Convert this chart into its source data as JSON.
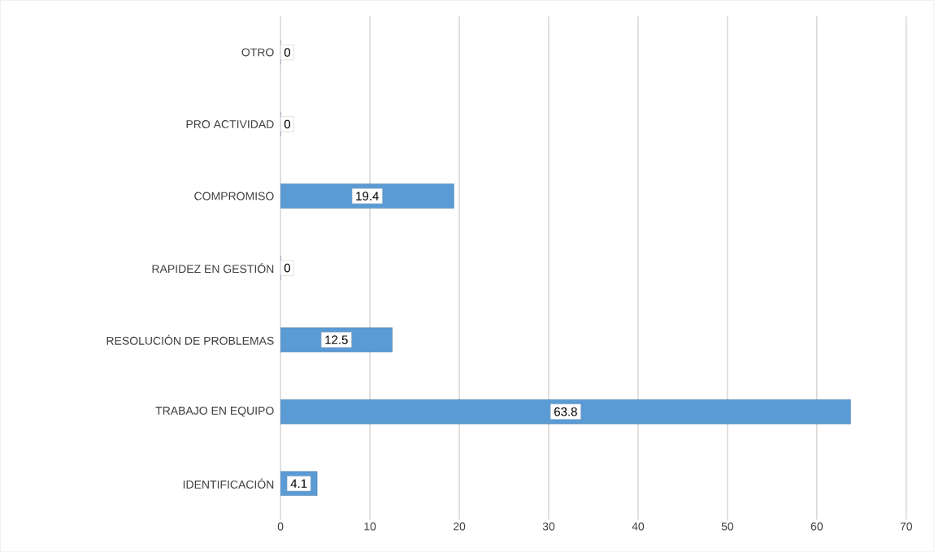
{
  "chart_data": {
    "type": "bar",
    "orientation": "horizontal",
    "categories": [
      "OTRO",
      "PRO ACTIVIDAD",
      "COMPROMISO",
      "RAPIDEZ EN GESTIÓN",
      "RESOLUCIÓN DE PROBLEMAS",
      "TRABAJO EN EQUIPO",
      "IDENTIFICACIÓN"
    ],
    "values": [
      0,
      0,
      19.4,
      0,
      12.5,
      63.8,
      4.1
    ],
    "color": "#5b9bd5",
    "xlim": [
      0,
      70
    ],
    "xticks": [
      0,
      10,
      20,
      30,
      40,
      50,
      60,
      70
    ],
    "grid": "x",
    "data_labels": true
  }
}
